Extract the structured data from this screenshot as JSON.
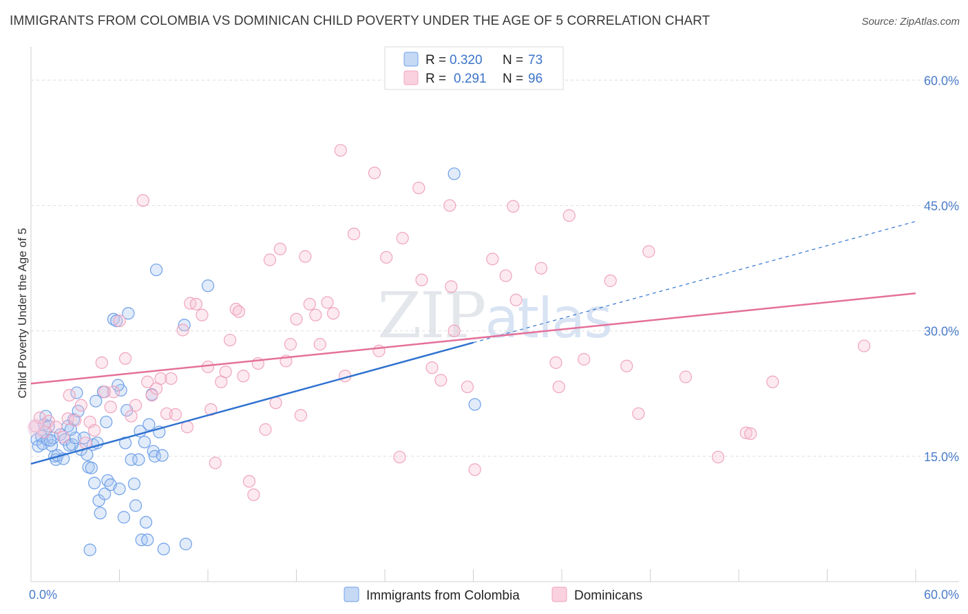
{
  "title": "IMMIGRANTS FROM COLOMBIA VS DOMINICAN CHILD POVERTY UNDER THE AGE OF 5 CORRELATION CHART",
  "source": "Source: ZipAtlas.com",
  "watermark": "ZIPatlas",
  "colors": {
    "blue": "#6fa0e8",
    "blue_line": "#2f72d0",
    "pink": "#f0a4bd",
    "pink_line": "#e4709a",
    "axis_text": "#4a7cc9"
  },
  "legend": {
    "rows": [
      {
        "r_label": "R =",
        "r_value": "0.320",
        "n_label": "N =",
        "n_value": "73"
      },
      {
        "r_label": "R =",
        "r_value": "0.291",
        "n_label": "N =",
        "n_value": "96"
      }
    ]
  },
  "bottom_legend": [
    "Immigrants from Colombia",
    "Dominicans"
  ],
  "chart_data": {
    "type": "scatter",
    "xlabel": "",
    "ylabel": "Child Poverty Under the Age of 5",
    "xlim": [
      0,
      60
    ],
    "ylim": [
      0,
      63
    ],
    "x_tick_labels": [
      "0.0%",
      "60.0%"
    ],
    "y_tick_labels": [
      "15.0%",
      "30.0%",
      "45.0%",
      "60.0%"
    ],
    "y_ticks": [
      15,
      30,
      45,
      60
    ],
    "grid": true,
    "legend_position": "top-center",
    "series": [
      {
        "name": "Immigrants from Colombia",
        "color": "#6fa0e8",
        "trend": {
          "x": [
            0,
            30
          ],
          "y": [
            14.1,
            28.6
          ],
          "dashed_to": [
            60,
            43.1
          ]
        },
        "points": [
          [
            0.4,
            17.0
          ],
          [
            0.5,
            16.2
          ],
          [
            0.7,
            17.4
          ],
          [
            0.8,
            16.5
          ],
          [
            0.9,
            18.8
          ],
          [
            1.0,
            19.8
          ],
          [
            1.1,
            17.0
          ],
          [
            1.2,
            18.6
          ],
          [
            1.4,
            16.3
          ],
          [
            1.5,
            17.2
          ],
          [
            1.6,
            15.0
          ],
          [
            1.7,
            14.6
          ],
          [
            1.8,
            15.1
          ],
          [
            2.0,
            17.6
          ],
          [
            2.2,
            14.7
          ],
          [
            2.3,
            17.0
          ],
          [
            2.5,
            18.6
          ],
          [
            2.6,
            16.3
          ],
          [
            2.8,
            16.4
          ],
          [
            2.9,
            19.4
          ],
          [
            3.0,
            17.2
          ],
          [
            3.1,
            22.6
          ],
          [
            3.2,
            20.4
          ],
          [
            3.4,
            15.8
          ],
          [
            3.6,
            17.2
          ],
          [
            3.8,
            15.2
          ],
          [
            3.9,
            13.7
          ],
          [
            4.1,
            13.6
          ],
          [
            4.2,
            16.4
          ],
          [
            4.3,
            11.8
          ],
          [
            4.4,
            21.6
          ],
          [
            4.5,
            16.6
          ],
          [
            4.6,
            9.7
          ],
          [
            4.7,
            8.2
          ],
          [
            4.9,
            22.7
          ],
          [
            5.0,
            10.5
          ],
          [
            5.1,
            19.1
          ],
          [
            5.2,
            12.1
          ],
          [
            5.4,
            11.6
          ],
          [
            5.6,
            31.4
          ],
          [
            5.8,
            31.2
          ],
          [
            6.0,
            11.1
          ],
          [
            6.1,
            22.9
          ],
          [
            6.3,
            7.7
          ],
          [
            6.4,
            16.6
          ],
          [
            6.5,
            20.5
          ],
          [
            6.6,
            32.1
          ],
          [
            6.8,
            14.6
          ],
          [
            7.0,
            11.7
          ],
          [
            7.1,
            9.1
          ],
          [
            7.3,
            14.6
          ],
          [
            7.4,
            18.0
          ],
          [
            7.5,
            5.0
          ],
          [
            7.7,
            16.7
          ],
          [
            7.8,
            7.1
          ],
          [
            7.9,
            5.0
          ],
          [
            8.0,
            18.8
          ],
          [
            8.2,
            22.4
          ],
          [
            8.3,
            15.6
          ],
          [
            8.4,
            15.0
          ],
          [
            8.5,
            37.3
          ],
          [
            8.7,
            17.9
          ],
          [
            8.9,
            15.1
          ],
          [
            9.0,
            3.9
          ],
          [
            10.4,
            30.7
          ],
          [
            10.5,
            4.5
          ],
          [
            12.0,
            35.4
          ],
          [
            28.7,
            48.8
          ],
          [
            30.1,
            21.2
          ],
          [
            5.9,
            23.5
          ],
          [
            4.0,
            3.8
          ],
          [
            2.7,
            18.2
          ],
          [
            1.3,
            16.9
          ]
        ]
      },
      {
        "name": "Dominicans",
        "color": "#f0a4bd",
        "trend": {
          "x": [
            0,
            60
          ],
          "y": [
            23.7,
            34.5
          ]
        },
        "points": [
          [
            0.3,
            18.6
          ],
          [
            0.6,
            19.6
          ],
          [
            0.9,
            17.9
          ],
          [
            1.2,
            19.2
          ],
          [
            1.7,
            18.5
          ],
          [
            2.2,
            17.3
          ],
          [
            2.5,
            19.5
          ],
          [
            2.6,
            22.3
          ],
          [
            3.0,
            19.3
          ],
          [
            3.4,
            21.1
          ],
          [
            3.7,
            16.6
          ],
          [
            4.0,
            19.1
          ],
          [
            4.3,
            18.1
          ],
          [
            4.8,
            26.2
          ],
          [
            5.0,
            22.7
          ],
          [
            5.4,
            20.9
          ],
          [
            5.6,
            22.7
          ],
          [
            6.0,
            31.2
          ],
          [
            6.4,
            26.7
          ],
          [
            6.8,
            19.8
          ],
          [
            7.1,
            21.1
          ],
          [
            7.6,
            45.6
          ],
          [
            7.9,
            23.9
          ],
          [
            8.2,
            22.3
          ],
          [
            8.5,
            23.1
          ],
          [
            8.8,
            24.3
          ],
          [
            9.2,
            20.1
          ],
          [
            9.5,
            24.3
          ],
          [
            9.8,
            20.0
          ],
          [
            10.3,
            30.1
          ],
          [
            10.6,
            18.5
          ],
          [
            10.8,
            33.3
          ],
          [
            11.2,
            33.2
          ],
          [
            11.6,
            31.9
          ],
          [
            12.0,
            25.7
          ],
          [
            12.2,
            20.6
          ],
          [
            12.5,
            14.2
          ],
          [
            12.9,
            23.9
          ],
          [
            13.2,
            25.1
          ],
          [
            13.5,
            28.9
          ],
          [
            13.9,
            32.6
          ],
          [
            14.1,
            32.3
          ],
          [
            14.4,
            24.6
          ],
          [
            14.8,
            12.0
          ],
          [
            15.1,
            10.4
          ],
          [
            15.4,
            26.1
          ],
          [
            15.9,
            18.2
          ],
          [
            16.2,
            38.5
          ],
          [
            16.6,
            21.4
          ],
          [
            16.9,
            39.8
          ],
          [
            17.3,
            26.4
          ],
          [
            17.6,
            28.4
          ],
          [
            18.0,
            31.4
          ],
          [
            18.3,
            19.9
          ],
          [
            18.6,
            38.9
          ],
          [
            18.9,
            33.2
          ],
          [
            19.3,
            31.9
          ],
          [
            19.6,
            28.4
          ],
          [
            20.1,
            33.4
          ],
          [
            20.5,
            32.1
          ],
          [
            21.0,
            51.6
          ],
          [
            21.3,
            24.6
          ],
          [
            21.9,
            41.6
          ],
          [
            23.3,
            48.9
          ],
          [
            23.6,
            27.6
          ],
          [
            24.1,
            38.8
          ],
          [
            25.0,
            14.9
          ],
          [
            25.2,
            41.1
          ],
          [
            26.3,
            47.1
          ],
          [
            26.5,
            36.1
          ],
          [
            27.2,
            25.6
          ],
          [
            27.8,
            24.1
          ],
          [
            28.4,
            45.0
          ],
          [
            28.5,
            35.3
          ],
          [
            28.7,
            30.0
          ],
          [
            29.6,
            23.3
          ],
          [
            30.1,
            13.4
          ],
          [
            31.3,
            38.6
          ],
          [
            32.2,
            36.6
          ],
          [
            32.7,
            44.9
          ],
          [
            32.9,
            33.7
          ],
          [
            34.6,
            37.5
          ],
          [
            35.6,
            26.2
          ],
          [
            35.8,
            23.3
          ],
          [
            36.5,
            43.8
          ],
          [
            37.5,
            26.6
          ],
          [
            39.3,
            36.0
          ],
          [
            40.4,
            25.8
          ],
          [
            41.2,
            20.1
          ],
          [
            41.9,
            39.5
          ],
          [
            44.4,
            24.5
          ],
          [
            46.6,
            14.9
          ],
          [
            48.5,
            17.8
          ],
          [
            48.8,
            17.7
          ],
          [
            50.3,
            23.9
          ],
          [
            56.5,
            28.2
          ]
        ]
      }
    ]
  }
}
